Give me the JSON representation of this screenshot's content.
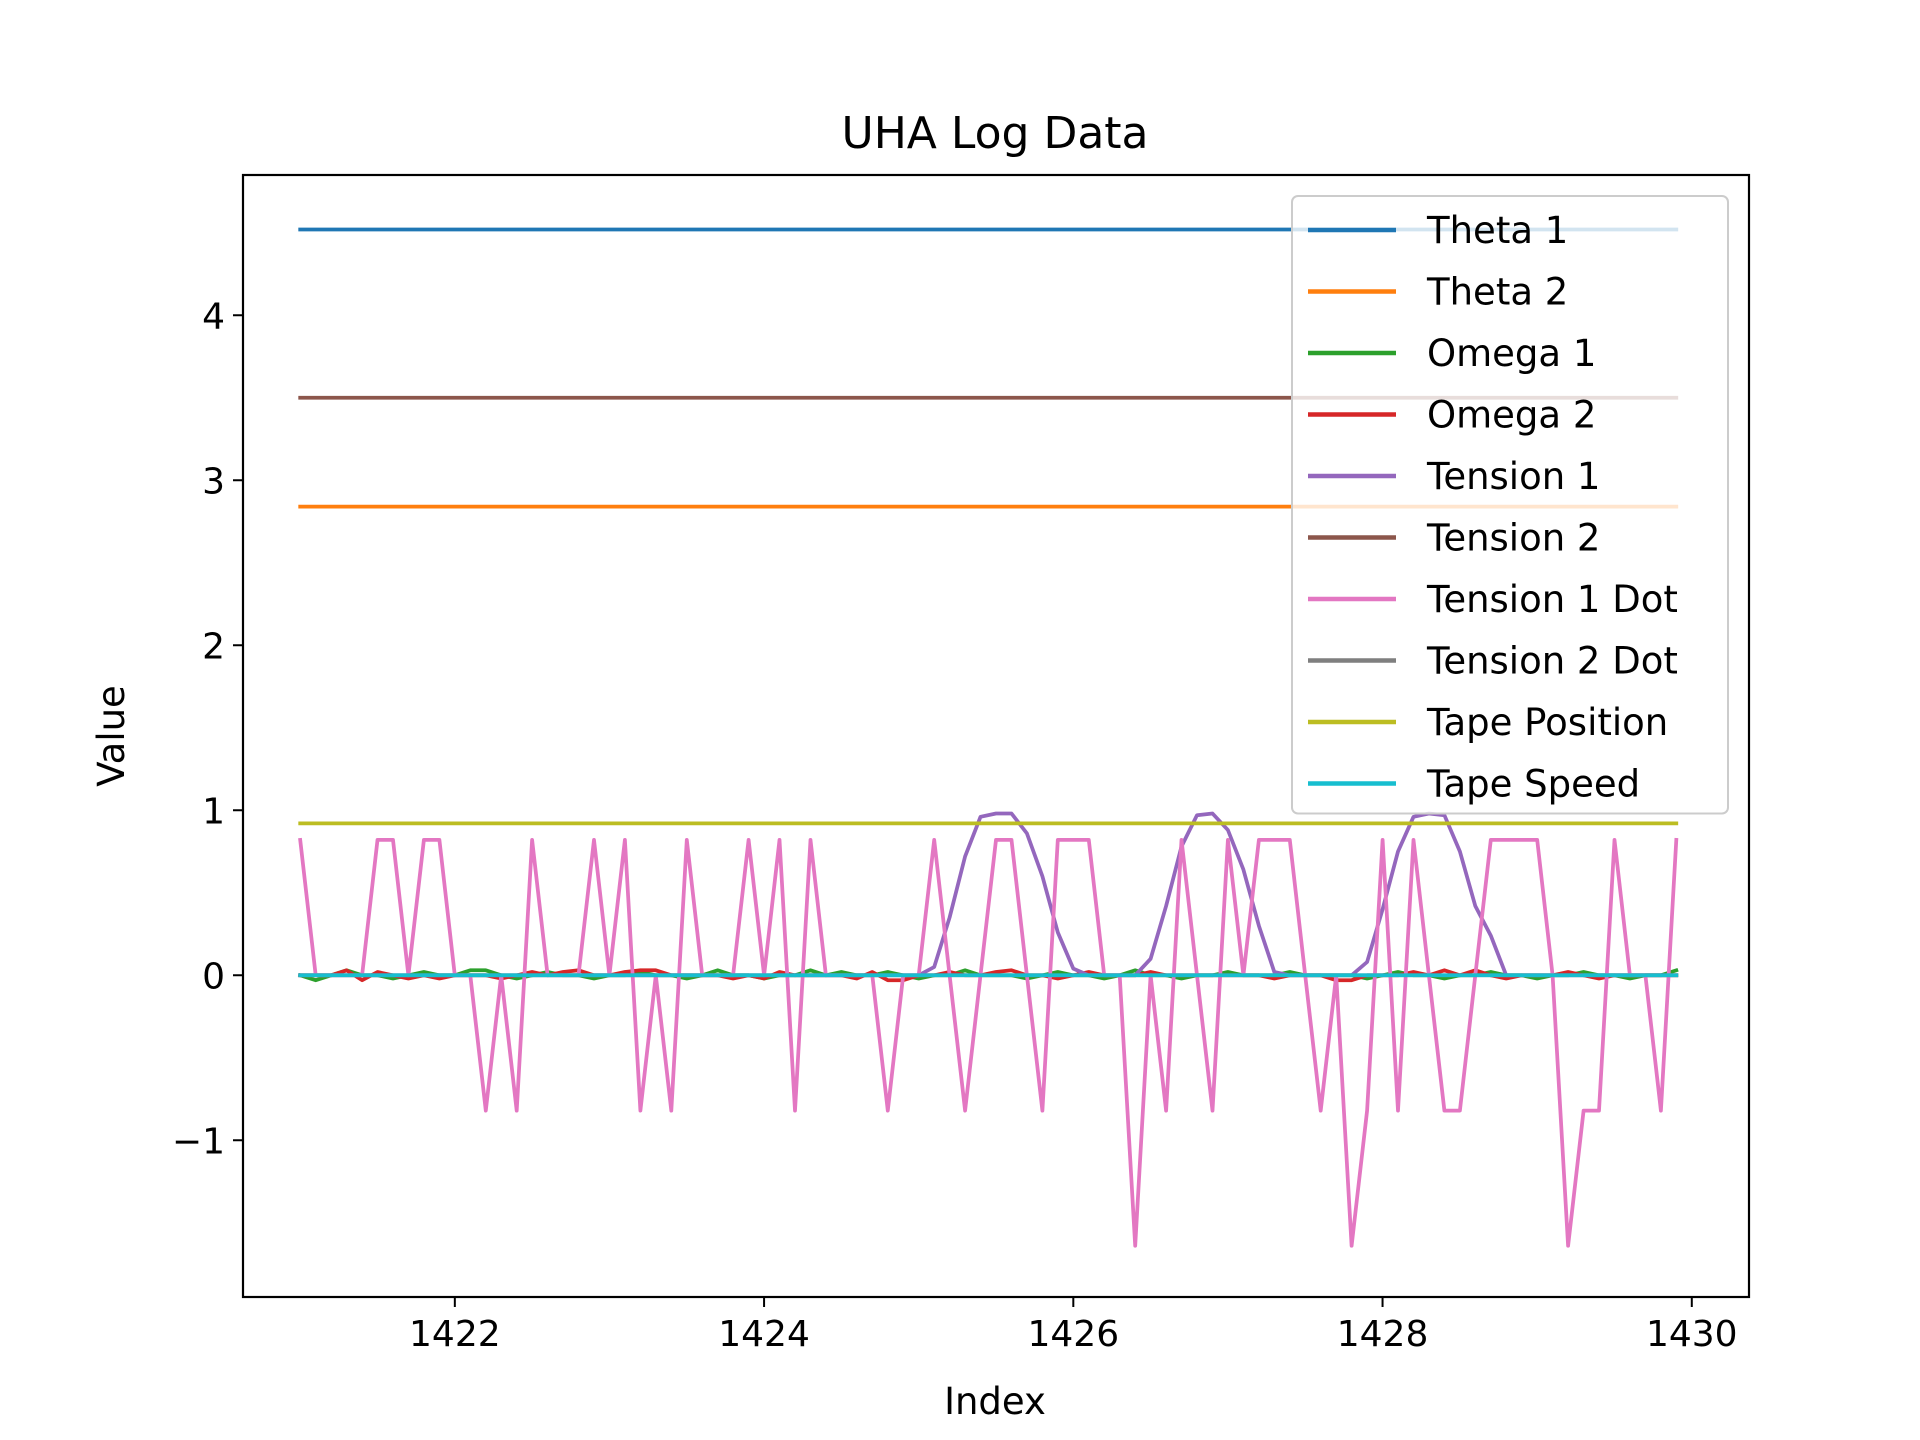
{
  "chart_data": {
    "type": "line",
    "title": "UHA Log Data",
    "xlabel": "Index",
    "ylabel": "Value",
    "xlim": [
      1420.63,
      1430.37
    ],
    "ylim": [
      -1.95,
      4.85
    ],
    "xticks": [
      1422,
      1424,
      1426,
      1428,
      1430
    ],
    "xtick_labels": [
      "1422",
      "1424",
      "1426",
      "1428",
      "1430"
    ],
    "yticks": [
      -1,
      0,
      1,
      2,
      3,
      4
    ],
    "ytick_labels": [
      "−1",
      "0",
      "1",
      "2",
      "3",
      "4"
    ],
    "grid": false,
    "legend_position": "top-right",
    "x_start": 1421.0,
    "x_step": 0.1,
    "series": [
      {
        "name": "Theta 1",
        "color": "#1f77b4",
        "values": [
          4.52,
          4.52,
          4.52,
          4.52,
          4.52,
          4.52,
          4.52,
          4.52,
          4.52,
          4.52,
          4.52,
          4.52,
          4.52,
          4.52,
          4.52,
          4.52,
          4.52,
          4.52,
          4.52,
          4.52,
          4.52,
          4.52,
          4.52,
          4.52,
          4.52,
          4.52,
          4.52,
          4.52,
          4.52,
          4.52,
          4.52,
          4.52,
          4.52,
          4.52,
          4.52,
          4.52,
          4.52,
          4.52,
          4.52,
          4.52,
          4.52,
          4.52,
          4.52,
          4.52,
          4.52,
          4.52,
          4.52,
          4.52,
          4.52,
          4.52,
          4.52,
          4.52,
          4.52,
          4.52,
          4.52,
          4.52,
          4.52,
          4.52,
          4.52,
          4.52,
          4.52,
          4.52,
          4.52,
          4.52,
          4.52,
          4.52,
          4.52,
          4.52,
          4.52,
          4.52,
          4.52,
          4.52,
          4.52,
          4.52,
          4.52,
          4.52,
          4.52,
          4.52,
          4.52,
          4.52,
          4.52,
          4.52,
          4.52,
          4.52,
          4.52,
          4.52,
          4.52,
          4.52,
          4.52,
          4.52
        ]
      },
      {
        "name": "Theta 2",
        "color": "#ff7f0e",
        "values": [
          2.84,
          2.84,
          2.84,
          2.84,
          2.84,
          2.84,
          2.84,
          2.84,
          2.84,
          2.84,
          2.84,
          2.84,
          2.84,
          2.84,
          2.84,
          2.84,
          2.84,
          2.84,
          2.84,
          2.84,
          2.84,
          2.84,
          2.84,
          2.84,
          2.84,
          2.84,
          2.84,
          2.84,
          2.84,
          2.84,
          2.84,
          2.84,
          2.84,
          2.84,
          2.84,
          2.84,
          2.84,
          2.84,
          2.84,
          2.84,
          2.84,
          2.84,
          2.84,
          2.84,
          2.84,
          2.84,
          2.84,
          2.84,
          2.84,
          2.84,
          2.84,
          2.84,
          2.84,
          2.84,
          2.84,
          2.84,
          2.84,
          2.84,
          2.84,
          2.84,
          2.84,
          2.84,
          2.84,
          2.84,
          2.84,
          2.84,
          2.84,
          2.84,
          2.84,
          2.84,
          2.84,
          2.84,
          2.84,
          2.84,
          2.84,
          2.84,
          2.84,
          2.84,
          2.84,
          2.84,
          2.84,
          2.84,
          2.84,
          2.84,
          2.84,
          2.84,
          2.84,
          2.84,
          2.84,
          2.84
        ]
      },
      {
        "name": "Omega 1",
        "color": "#2ca02c",
        "values": [
          0.0,
          -0.03,
          0.0,
          0.03,
          0.0,
          0.0,
          -0.02,
          0.0,
          0.02,
          0.0,
          0.0,
          0.03,
          0.03,
          0.0,
          -0.02,
          0.0,
          0.02,
          0.0,
          0.0,
          -0.02,
          0.0,
          0.0,
          0.02,
          0.0,
          0.0,
          -0.02,
          0.0,
          0.03,
          0.0,
          0.0,
          -0.02,
          0.0,
          0.0,
          0.03,
          0.0,
          0.02,
          0.0,
          0.0,
          0.02,
          0.0,
          -0.02,
          0.0,
          0.0,
          0.03,
          0.0,
          0.0,
          0.0,
          -0.02,
          0.0,
          0.02,
          0.0,
          0.0,
          -0.02,
          0.0,
          0.03,
          0.0,
          0.0,
          -0.02,
          0.0,
          0.0,
          0.02,
          0.0,
          0.0,
          0.0,
          0.02,
          0.0,
          0.0,
          0.0,
          0.0,
          -0.02,
          0.0,
          0.02,
          0.0,
          0.0,
          -0.02,
          0.0,
          0.0,
          0.02,
          0.0,
          0.0,
          -0.02,
          0.0,
          0.0,
          0.02,
          0.0,
          0.0,
          -0.02,
          0.0,
          0.0,
          0.03
        ]
      },
      {
        "name": "Omega 2",
        "color": "#d62728",
        "values": [
          0.0,
          0.0,
          0.0,
          0.03,
          -0.03,
          0.02,
          0.0,
          -0.02,
          0.0,
          -0.02,
          0.0,
          0.0,
          0.0,
          -0.02,
          0.0,
          0.02,
          0.0,
          0.02,
          0.03,
          0.0,
          0.0,
          0.02,
          0.03,
          0.03,
          0.0,
          0.0,
          0.0,
          0.0,
          -0.02,
          0.0,
          -0.02,
          0.02,
          0.0,
          0.0,
          0.0,
          0.0,
          -0.02,
          0.02,
          -0.03,
          -0.03,
          0.0,
          0.0,
          0.02,
          0.0,
          0.0,
          0.02,
          0.03,
          0.0,
          0.0,
          -0.02,
          0.0,
          0.02,
          0.0,
          0.0,
          0.0,
          0.02,
          0.0,
          0.0,
          0.0,
          0.0,
          0.0,
          0.0,
          0.0,
          -0.02,
          0.0,
          0.0,
          0.0,
          -0.03,
          -0.03,
          0.0,
          0.0,
          0.0,
          0.02,
          0.0,
          0.03,
          0.0,
          0.03,
          0.0,
          -0.02,
          0.0,
          0.0,
          0.0,
          0.02,
          0.0,
          -0.02,
          0.0,
          0.0,
          0.0,
          0.0,
          0.0
        ]
      },
      {
        "name": "Tension 1",
        "color": "#9467bd",
        "values": [
          0.0,
          0.0,
          0.0,
          0.0,
          0.0,
          0.0,
          0.0,
          0.0,
          0.0,
          0.0,
          0.0,
          0.0,
          0.0,
          0.0,
          0.0,
          0.0,
          0.0,
          0.0,
          0.0,
          0.0,
          0.0,
          0.0,
          0.0,
          0.0,
          0.0,
          0.0,
          0.0,
          0.0,
          0.0,
          0.0,
          0.0,
          0.0,
          0.0,
          0.0,
          0.0,
          0.0,
          0.0,
          0.0,
          0.0,
          0.0,
          0.0,
          0.05,
          0.35,
          0.72,
          0.96,
          0.98,
          0.98,
          0.86,
          0.6,
          0.26,
          0.04,
          0.0,
          0.0,
          0.0,
          0.0,
          0.1,
          0.42,
          0.78,
          0.97,
          0.98,
          0.88,
          0.64,
          0.3,
          0.02,
          0.0,
          0.0,
          0.0,
          0.0,
          0.0,
          0.08,
          0.4,
          0.75,
          0.96,
          0.98,
          0.97,
          0.75,
          0.42,
          0.24,
          0.0,
          0.0,
          0.0,
          0.0,
          0.0,
          0.0,
          0.0,
          0.0,
          0.0,
          0.0,
          0.0,
          0.0
        ]
      },
      {
        "name": "Tension 2",
        "color": "#8c564b",
        "values": [
          3.5,
          3.5,
          3.5,
          3.5,
          3.5,
          3.5,
          3.5,
          3.5,
          3.5,
          3.5,
          3.5,
          3.5,
          3.5,
          3.5,
          3.5,
          3.5,
          3.5,
          3.5,
          3.5,
          3.5,
          3.5,
          3.5,
          3.5,
          3.5,
          3.5,
          3.5,
          3.5,
          3.5,
          3.5,
          3.5,
          3.5,
          3.5,
          3.5,
          3.5,
          3.5,
          3.5,
          3.5,
          3.5,
          3.5,
          3.5,
          3.5,
          3.5,
          3.5,
          3.5,
          3.5,
          3.5,
          3.5,
          3.5,
          3.5,
          3.5,
          3.5,
          3.5,
          3.5,
          3.5,
          3.5,
          3.5,
          3.5,
          3.5,
          3.5,
          3.5,
          3.5,
          3.5,
          3.5,
          3.5,
          3.5,
          3.5,
          3.5,
          3.5,
          3.5,
          3.5,
          3.5,
          3.5,
          3.5,
          3.5,
          3.5,
          3.5,
          3.5,
          3.5,
          3.5,
          3.5,
          3.5,
          3.5,
          3.5,
          3.5,
          3.5,
          3.5,
          3.5,
          3.5,
          3.5,
          3.5
        ]
      },
      {
        "name": "Tension 1 Dot",
        "color": "#e377c2",
        "values": [
          0.82,
          0.0,
          0.0,
          0.0,
          0.0,
          0.82,
          0.82,
          0.0,
          0.82,
          0.82,
          0.0,
          0.0,
          -0.82,
          0.0,
          -0.82,
          0.82,
          0.0,
          0.0,
          0.0,
          0.82,
          0.0,
          0.82,
          -0.82,
          0.0,
          -0.82,
          0.82,
          0.0,
          0.0,
          0.0,
          0.82,
          0.0,
          0.82,
          -0.82,
          0.82,
          0.0,
          0.0,
          0.0,
          0.0,
          -0.82,
          0.0,
          0.0,
          0.82,
          0.0,
          -0.82,
          0.0,
          0.82,
          0.82,
          0.0,
          -0.82,
          0.82,
          0.82,
          0.82,
          0.0,
          0.0,
          -1.64,
          0.0,
          -0.82,
          0.82,
          0.0,
          -0.82,
          0.82,
          0.0,
          0.82,
          0.82,
          0.82,
          0.0,
          -0.82,
          0.0,
          -1.64,
          -0.82,
          0.82,
          -0.82,
          0.82,
          0.0,
          -0.82,
          -0.82,
          0.0,
          0.82,
          0.82,
          0.82,
          0.82,
          0.0,
          -1.64,
          -0.82,
          -0.82,
          0.82,
          0.0,
          0.0,
          -0.82,
          0.82
        ]
      },
      {
        "name": "Tension 2 Dot",
        "color": "#7f7f7f",
        "values": [
          0.0,
          0.0,
          0.0,
          0.0,
          0.0,
          0.0,
          0.0,
          0.0,
          0.0,
          0.0,
          0.0,
          0.0,
          0.0,
          0.0,
          0.0,
          0.0,
          0.0,
          0.0,
          0.0,
          0.0,
          0.0,
          0.0,
          0.0,
          0.0,
          0.0,
          0.0,
          0.0,
          0.0,
          0.0,
          0.0,
          0.0,
          0.0,
          0.0,
          0.0,
          0.0,
          0.0,
          0.0,
          0.0,
          0.0,
          0.0,
          0.0,
          0.0,
          0.0,
          0.0,
          0.0,
          0.0,
          0.0,
          0.0,
          0.0,
          0.0,
          0.0,
          0.0,
          0.0,
          0.0,
          0.0,
          0.0,
          0.0,
          0.0,
          0.0,
          0.0,
          0.0,
          0.0,
          0.0,
          0.0,
          0.0,
          0.0,
          0.0,
          0.0,
          0.0,
          0.0,
          0.0,
          0.0,
          0.0,
          0.0,
          0.0,
          0.0,
          0.0,
          0.0,
          0.0,
          0.0,
          0.0,
          0.0,
          0.0,
          0.0,
          0.0,
          0.0,
          0.0,
          0.0,
          0.0,
          0.0
        ]
      },
      {
        "name": "Tape Position",
        "color": "#bcbd22",
        "values": [
          0.92,
          0.92,
          0.92,
          0.92,
          0.92,
          0.92,
          0.92,
          0.92,
          0.92,
          0.92,
          0.92,
          0.92,
          0.92,
          0.92,
          0.92,
          0.92,
          0.92,
          0.92,
          0.92,
          0.92,
          0.92,
          0.92,
          0.92,
          0.92,
          0.92,
          0.92,
          0.92,
          0.92,
          0.92,
          0.92,
          0.92,
          0.92,
          0.92,
          0.92,
          0.92,
          0.92,
          0.92,
          0.92,
          0.92,
          0.92,
          0.92,
          0.92,
          0.92,
          0.92,
          0.92,
          0.92,
          0.92,
          0.92,
          0.92,
          0.92,
          0.92,
          0.92,
          0.92,
          0.92,
          0.92,
          0.92,
          0.92,
          0.92,
          0.92,
          0.92,
          0.92,
          0.92,
          0.92,
          0.92,
          0.92,
          0.92,
          0.92,
          0.92,
          0.92,
          0.92,
          0.92,
          0.92,
          0.92,
          0.92,
          0.92,
          0.92,
          0.92,
          0.92,
          0.92,
          0.92,
          0.92,
          0.92,
          0.92,
          0.92,
          0.92,
          0.92,
          0.92,
          0.92,
          0.92,
          0.92
        ]
      },
      {
        "name": "Tape Speed",
        "color": "#17becf",
        "values": [
          0.0,
          0.0,
          0.0,
          0.0,
          0.0,
          0.0,
          0.0,
          0.0,
          0.0,
          0.0,
          0.0,
          0.0,
          0.0,
          0.0,
          0.0,
          0.0,
          0.0,
          0.0,
          0.0,
          0.0,
          0.0,
          0.0,
          0.0,
          0.0,
          0.0,
          0.0,
          0.0,
          0.0,
          0.0,
          0.0,
          0.0,
          0.0,
          0.0,
          0.0,
          0.0,
          0.0,
          0.0,
          0.0,
          0.0,
          0.0,
          0.0,
          0.0,
          0.0,
          0.0,
          0.0,
          0.0,
          0.0,
          0.0,
          0.0,
          0.0,
          0.0,
          0.0,
          0.0,
          0.0,
          0.0,
          0.0,
          0.0,
          0.0,
          0.0,
          0.0,
          0.0,
          0.0,
          0.0,
          0.0,
          0.0,
          0.0,
          0.0,
          0.0,
          0.0,
          0.0,
          0.0,
          0.0,
          0.0,
          0.0,
          0.0,
          0.0,
          0.0,
          0.0,
          0.0,
          0.0,
          0.0,
          0.0,
          0.0,
          0.0,
          0.0,
          0.0,
          0.0,
          0.0,
          0.0,
          0.0
        ]
      }
    ]
  }
}
